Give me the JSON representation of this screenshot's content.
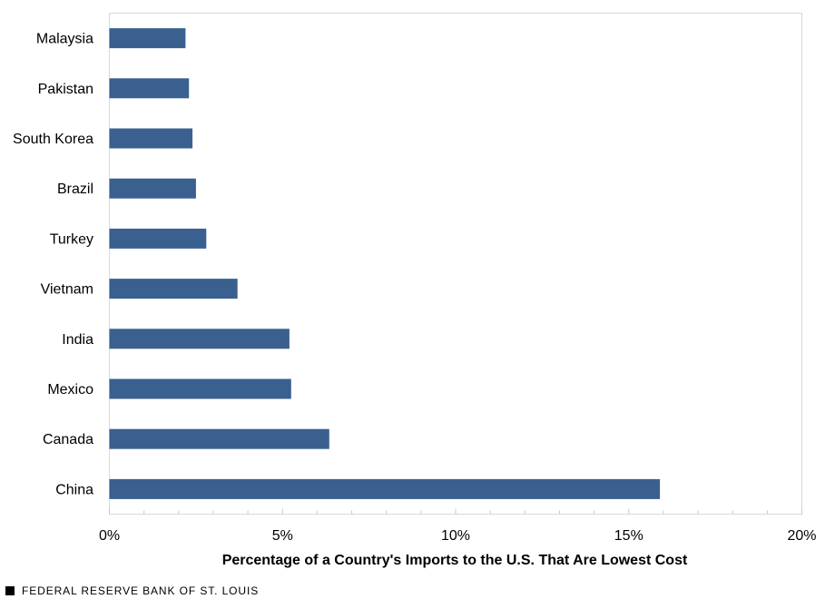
{
  "chart_data": {
    "type": "bar",
    "orientation": "horizontal",
    "title": "",
    "categories": [
      "Malaysia",
      "Pakistan",
      "South Korea",
      "Brazil",
      "Turkey",
      "Vietnam",
      "India",
      "Mexico",
      "Canada",
      "China"
    ],
    "values": [
      2.2,
      2.3,
      2.4,
      2.5,
      2.8,
      3.7,
      5.2,
      5.25,
      6.35,
      15.9
    ],
    "xlabel": "Percentage of a Country's Imports to the U.S. That Are Lowest Cost",
    "ylabel": "",
    "xlim": [
      0,
      20
    ],
    "x_ticks": [
      0,
      5,
      10,
      15,
      20
    ],
    "x_tick_labels": [
      "0%",
      "5%",
      "10%",
      "15%",
      "20%"
    ],
    "grid": false,
    "bar_color": "#3A6090"
  },
  "footer": {
    "source": "FEDERAL RESERVE BANK OF ST. LOUIS"
  }
}
